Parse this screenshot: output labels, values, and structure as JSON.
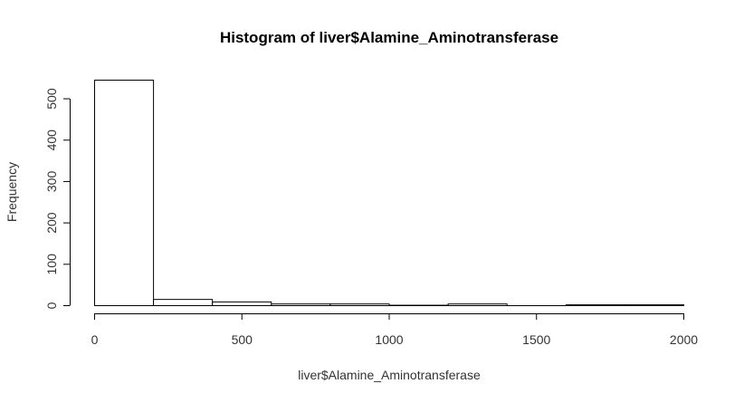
{
  "chart_data": {
    "type": "bar",
    "title": "Histogram of liver$Alamine_Aminotransferase",
    "xlabel": "liver$Alamine_Aminotransferase",
    "ylabel": "Frequency",
    "bins": [
      {
        "start": 0,
        "end": 200,
        "count": 545
      },
      {
        "start": 200,
        "end": 400,
        "count": 15
      },
      {
        "start": 400,
        "end": 600,
        "count": 9
      },
      {
        "start": 600,
        "end": 800,
        "count": 4
      },
      {
        "start": 800,
        "end": 1000,
        "count": 4
      },
      {
        "start": 1000,
        "end": 1200,
        "count": 1
      },
      {
        "start": 1200,
        "end": 1400,
        "count": 4
      },
      {
        "start": 1400,
        "end": 1600,
        "count": 0
      },
      {
        "start": 1600,
        "end": 1800,
        "count": 2
      },
      {
        "start": 1800,
        "end": 2000,
        "count": 2
      }
    ],
    "xlim": [
      0,
      2000
    ],
    "ylim": [
      0,
      545
    ],
    "xticks": [
      "0",
      "500",
      "1000",
      "1500",
      "2000"
    ],
    "yticks": [
      "0",
      "100",
      "200",
      "300",
      "400",
      "500"
    ],
    "grid": false,
    "colors": {
      "bar_fill": "#ffffff",
      "bar_stroke": "#000000"
    }
  }
}
